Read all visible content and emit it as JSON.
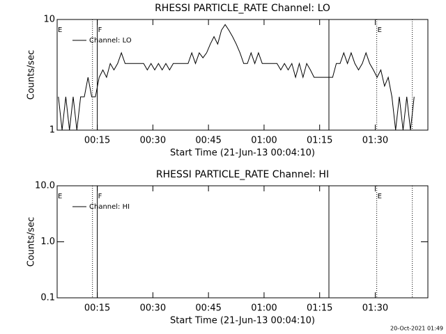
{
  "chart_data": [
    {
      "type": "line",
      "title": "RHESSI PARTICLE_RATE Channel: LO",
      "xlabel": "Start Time (21-Jun-13 00:04:10)",
      "ylabel": "Counts/sec",
      "log_y": true,
      "xlim": [
        4.17,
        104.2
      ],
      "ylim": [
        1,
        10
      ],
      "yticks": [
        1,
        10
      ],
      "xticks": [
        {
          "value": 15,
          "label": "00:15"
        },
        {
          "value": 30,
          "label": "00:30"
        },
        {
          "value": 45,
          "label": "00:45"
        },
        {
          "value": 60,
          "label": "01:00"
        },
        {
          "value": 75,
          "label": "01:15"
        },
        {
          "value": 90,
          "label": "01:30"
        }
      ],
      "flags": [
        {
          "label": "E",
          "x": 4.17
        },
        {
          "label": "F",
          "x": 15
        },
        {
          "label": "E",
          "x": 90.4
        }
      ],
      "lines": [
        {
          "x": 13.7,
          "style": "dotted"
        },
        {
          "x": 15,
          "style": "solid"
        },
        {
          "x": 77.5,
          "style": "solid"
        },
        {
          "x": 90.4,
          "style": "dotted"
        },
        {
          "x": 100,
          "style": "dotted"
        }
      ],
      "x": [
        4.5,
        5.5,
        6.5,
        7.5,
        8.5,
        9.5,
        10.5,
        11.5,
        12.5,
        13.5,
        14.5,
        15.5,
        16.5,
        17.5,
        18.5,
        19.5,
        20.5,
        21.5,
        22.5,
        23.5,
        24.5,
        25.5,
        26.5,
        27.5,
        28.5,
        29.5,
        30.5,
        31.5,
        32.5,
        33.5,
        34.5,
        35.5,
        36.5,
        37.5,
        38.5,
        39.5,
        40.5,
        41.5,
        42.5,
        43.5,
        44.5,
        45.5,
        46.5,
        47.5,
        48.5,
        49.5,
        50.5,
        51.5,
        52.5,
        53.5,
        54.5,
        55.5,
        56.5,
        57.5,
        58.5,
        59.5,
        60.5,
        61.5,
        62.5,
        63.5,
        64.5,
        65.5,
        66.5,
        67.5,
        68.5,
        69.5,
        70.5,
        71.5,
        72.5,
        73.5,
        74.5,
        75.5,
        76.5,
        77.5,
        78.5,
        79.5,
        80.5,
        81.5,
        82.5,
        83.5,
        84.5,
        85.5,
        86.5,
        87.5,
        88.5,
        89.5,
        90.5,
        91.5,
        92.5,
        93.5,
        94.5,
        95.5,
        96.5,
        97.5,
        98.5,
        99.5,
        100.5
      ],
      "series": [
        {
          "name": "Channel: LO",
          "color": "#000000",
          "values": [
            2,
            1,
            2,
            1,
            2,
            1,
            2,
            2,
            3,
            2,
            2,
            3,
            3.5,
            3,
            4,
            3.5,
            4,
            5,
            4,
            4,
            4,
            4,
            4,
            4,
            3.5,
            4,
            3.5,
            4,
            3.5,
            4,
            3.5,
            4,
            4,
            4,
            4,
            4,
            5,
            4,
            5,
            4.5,
            5,
            6,
            7,
            6,
            8,
            9,
            8,
            7,
            6,
            5,
            4,
            4,
            5,
            4,
            5,
            4,
            4,
            4,
            4,
            4,
            3.5,
            4,
            3.5,
            4,
            3,
            4,
            3,
            4,
            3.5,
            3,
            3,
            3,
            3,
            3,
            3,
            4,
            4,
            5,
            4,
            5,
            4,
            3.5,
            4,
            5,
            4,
            3.5,
            3,
            3.5,
            2.5,
            3,
            2,
            1,
            2,
            1,
            2,
            1,
            2
          ]
        }
      ],
      "legend": "upper left"
    },
    {
      "type": "line",
      "title": "RHESSI PARTICLE_RATE Channel: HI",
      "xlabel": "Start Time (21-Jun-13 00:04:10)",
      "ylabel": "Counts/sec",
      "log_y": true,
      "xlim": [
        4.17,
        104.2
      ],
      "ylim": [
        0.1,
        10
      ],
      "yticks": [
        {
          "value": 0.1,
          "label": "0.1"
        },
        {
          "value": 1,
          "label": "1.0"
        },
        {
          "value": 10,
          "label": "10.0"
        }
      ],
      "xticks": [
        {
          "value": 15,
          "label": "00:15"
        },
        {
          "value": 30,
          "label": "00:30"
        },
        {
          "value": 45,
          "label": "00:45"
        },
        {
          "value": 60,
          "label": "01:00"
        },
        {
          "value": 75,
          "label": "01:15"
        },
        {
          "value": 90,
          "label": "01:30"
        }
      ],
      "flags": [
        {
          "label": "E",
          "x": 4.17
        },
        {
          "label": "F",
          "x": 15
        },
        {
          "label": "E",
          "x": 90.4
        }
      ],
      "lines": [
        {
          "x": 13.7,
          "style": "dotted"
        },
        {
          "x": 15,
          "style": "solid"
        },
        {
          "x": 77.5,
          "style": "solid"
        },
        {
          "x": 90.4,
          "style": "dotted"
        },
        {
          "x": 100,
          "style": "dotted"
        }
      ],
      "series": [
        {
          "name": "Channel: HI",
          "color": "#000000",
          "values": []
        }
      ],
      "legend": "upper left"
    }
  ],
  "footer": "20-Oct-2021 01:49"
}
